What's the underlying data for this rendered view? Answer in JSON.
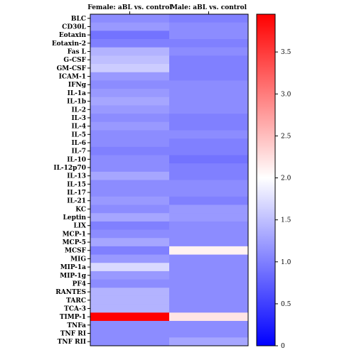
{
  "chart_data": {
    "type": "heatmap",
    "columns": [
      "Female: aBL vs. control",
      "Male: aBL vs. control"
    ],
    "rows": [
      "BLC",
      "CD30L",
      "Eotaxin",
      "Eotaxin-2",
      "Fas L",
      "G-CSF",
      "GM-CSF",
      "ICAM-1",
      "IFNg",
      "IL-1a",
      "IL-1b",
      "IL-2",
      "IL-3",
      "IL-4",
      "IL-5",
      "IL-6",
      "IL-7",
      "IL-10",
      "IL-12p70",
      "IL-13",
      "IL-15",
      "IL-17",
      "IL-21",
      "KC",
      "Leptin",
      "LIX",
      "MCP-1",
      "MCP-5",
      "MCSF",
      "MIG",
      "MIP-1a",
      "MIP-1g",
      "PF4",
      "RANTES",
      "TARC",
      "TCA-3",
      "TIMP-1",
      "TNFa",
      "TNF RI",
      "TNF RII"
    ],
    "values": [
      [
        1.1,
        1.0
      ],
      [
        1.2,
        1.1
      ],
      [
        0.9,
        1.1
      ],
      [
        1.0,
        1.0
      ],
      [
        1.4,
        1.1
      ],
      [
        1.5,
        1.0
      ],
      [
        1.6,
        1.0
      ],
      [
        1.2,
        1.0
      ],
      [
        1.1,
        1.1
      ],
      [
        1.2,
        1.1
      ],
      [
        1.3,
        1.1
      ],
      [
        1.2,
        1.1
      ],
      [
        1.1,
        1.0
      ],
      [
        1.2,
        1.0
      ],
      [
        1.1,
        1.1
      ],
      [
        1.1,
        1.0
      ],
      [
        1.0,
        1.0
      ],
      [
        1.1,
        0.9
      ],
      [
        1.1,
        1.0
      ],
      [
        1.3,
        1.0
      ],
      [
        1.1,
        1.1
      ],
      [
        1.1,
        1.1
      ],
      [
        1.2,
        1.0
      ],
      [
        1.1,
        1.2
      ],
      [
        1.3,
        1.2
      ],
      [
        1.0,
        1.1
      ],
      [
        1.1,
        1.1
      ],
      [
        1.3,
        1.1
      ],
      [
        1.0,
        2.1
      ],
      [
        1.2,
        1.1
      ],
      [
        1.7,
        1.1
      ],
      [
        1.2,
        1.1
      ],
      [
        1.1,
        1.1
      ],
      [
        1.4,
        1.1
      ],
      [
        1.4,
        1.1
      ],
      [
        1.4,
        1.1
      ],
      [
        3.95,
        2.2
      ],
      [
        1.1,
        1.1
      ],
      [
        1.1,
        1.1
      ],
      [
        1.1,
        1.3
      ]
    ],
    "colorbar": {
      "min": 0,
      "max": 3.95,
      "center": 2.0,
      "ticks": [
        0,
        0.5,
        1.0,
        1.5,
        2.0,
        2.5,
        3.0,
        3.5
      ],
      "tick_labels": [
        "0",
        "0.5",
        "1.0",
        "1.5",
        "2.0",
        "2.5",
        "3.0",
        "3.5"
      ],
      "colors": {
        "low": "#0000ff",
        "mid": "#ffffff",
        "high": "#ff0000"
      }
    }
  }
}
